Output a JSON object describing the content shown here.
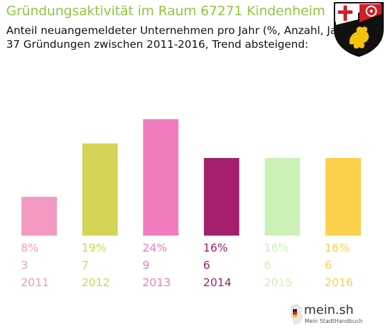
{
  "header": {
    "title": "Gründungsaktivität im Raum 67271 Kindenheim",
    "subtitle_line1": "Anteil neuangemeldeter Unternehmen pro Jahr (%, Anzahl, Jahr)",
    "subtitle_line2": "37 Gründungen zwischen 2011-2016, Trend absteigend:"
  },
  "crest": {
    "icon": "coat-of-arms-icon"
  },
  "chart_data": {
    "type": "bar",
    "categories": [
      "2011",
      "2012",
      "2013",
      "2014",
      "2015",
      "2016"
    ],
    "values": [
      8,
      19,
      24,
      16,
      16,
      16
    ],
    "percent_labels": [
      "8%",
      "19%",
      "24%",
      "16%",
      "16%",
      "16%"
    ],
    "counts": [
      "3",
      "7",
      "9",
      "6",
      "6",
      "6"
    ],
    "colors": [
      "#f49ac2",
      "#d4d457",
      "#f07cbe",
      "#a4206e",
      "#cdf0b7",
      "#fbd04a"
    ],
    "ylim": [
      0,
      28
    ],
    "grid": false
  },
  "footer": {
    "brand": "mein.sh",
    "brand_sub": "Mein StadtHandbuch",
    "icon": "germany-map-icon"
  }
}
